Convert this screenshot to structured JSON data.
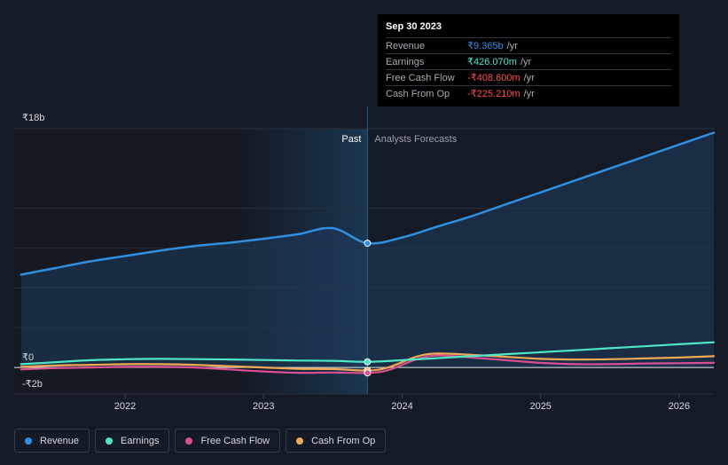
{
  "chart_data": {
    "type": "line",
    "y_tick_labels": [
      "₹18b",
      "₹0",
      "-₹2b"
    ],
    "x_ticks": [
      2022,
      2023,
      2024,
      2025,
      2026
    ],
    "xlim": [
      2021.2,
      2026.25
    ],
    "ylim": [
      -2,
      18
    ],
    "grid": true,
    "zones": {
      "past_label": "Past",
      "forecast_label": "Analysts Forecasts",
      "divider_x": 2023.75
    },
    "series": [
      {
        "name": "Revenue",
        "color": "#2f8fe0",
        "x": [
          2021.25,
          2021.5,
          2021.75,
          2022.0,
          2022.25,
          2022.5,
          2022.75,
          2023.0,
          2023.25,
          2023.5,
          2023.75,
          2024.0,
          2024.25,
          2024.5,
          2024.75,
          2025.0,
          2025.25,
          2025.5,
          2025.75,
          2026.0,
          2026.25
        ],
        "values": [
          7.0,
          7.5,
          8.0,
          8.4,
          8.8,
          9.15,
          9.4,
          9.7,
          10.05,
          10.5,
          9.365,
          9.8,
          10.6,
          11.4,
          12.3,
          13.2,
          14.1,
          15.0,
          15.9,
          16.8,
          17.7
        ]
      },
      {
        "name": "Earnings",
        "color": "#4fe6c6",
        "x": [
          2021.25,
          2021.5,
          2021.75,
          2022.0,
          2022.25,
          2022.5,
          2022.75,
          2023.0,
          2023.25,
          2023.5,
          2023.75,
          2024.0,
          2024.25,
          2024.5,
          2024.75,
          2025.0,
          2025.25,
          2025.5,
          2025.75,
          2026.0,
          2026.25
        ],
        "values": [
          0.25,
          0.4,
          0.55,
          0.62,
          0.65,
          0.63,
          0.6,
          0.56,
          0.52,
          0.5,
          0.426,
          0.55,
          0.7,
          0.85,
          1.0,
          1.15,
          1.3,
          1.45,
          1.6,
          1.75,
          1.9
        ]
      },
      {
        "name": "Free Cash Flow",
        "color": "#d94f93",
        "x": [
          2021.25,
          2021.5,
          2021.75,
          2022.0,
          2022.25,
          2022.5,
          2022.75,
          2023.0,
          2023.25,
          2023.5,
          2023.75,
          2023.9,
          2024.1,
          2024.25,
          2024.5,
          2024.75,
          2025.0,
          2025.25,
          2025.5,
          2025.75,
          2026.0,
          2026.25
        ],
        "values": [
          -0.15,
          -0.05,
          0.0,
          0.05,
          0.05,
          0.0,
          -0.15,
          -0.3,
          -0.4,
          -0.38,
          -0.4086,
          -0.2,
          0.6,
          0.9,
          0.75,
          0.55,
          0.35,
          0.25,
          0.25,
          0.3,
          0.32,
          0.35
        ]
      },
      {
        "name": "Cash From Op",
        "color": "#f0a856",
        "x": [
          2021.25,
          2021.5,
          2021.75,
          2022.0,
          2022.25,
          2022.5,
          2022.75,
          2023.0,
          2023.25,
          2023.5,
          2023.75,
          2023.9,
          2024.1,
          2024.25,
          2024.5,
          2024.75,
          2025.0,
          2025.25,
          2025.5,
          2025.75,
          2026.0,
          2026.25
        ],
        "values": [
          0.05,
          0.15,
          0.2,
          0.25,
          0.25,
          0.2,
          0.1,
          0.0,
          -0.1,
          -0.12,
          -0.2252,
          0.0,
          0.8,
          1.05,
          0.95,
          0.8,
          0.65,
          0.6,
          0.62,
          0.68,
          0.75,
          0.85
        ]
      }
    ],
    "highlight": {
      "x": 2023.75,
      "title": "Sep 30 2023"
    }
  },
  "tooltip": {
    "date": "Sep 30 2023",
    "rows": [
      {
        "label": "Revenue",
        "value": "₹9.365b",
        "unit": "/yr",
        "color": "#2f8fe0"
      },
      {
        "label": "Earnings",
        "value": "₹426.070m",
        "unit": "/yr",
        "color": "#4fe6c6"
      },
      {
        "label": "Free Cash Flow",
        "value": "-₹408.600m",
        "unit": "/yr",
        "color": "#ff4d4d"
      },
      {
        "label": "Cash From Op",
        "value": "-₹225.210m",
        "unit": "/yr",
        "color": "#ff4d4d"
      }
    ]
  },
  "legend": [
    {
      "label": "Revenue",
      "color": "#2f8fe0"
    },
    {
      "label": "Earnings",
      "color": "#4fe6c6"
    },
    {
      "label": "Free Cash Flow",
      "color": "#d94f93"
    },
    {
      "label": "Cash From Op",
      "color": "#f0a856"
    }
  ]
}
